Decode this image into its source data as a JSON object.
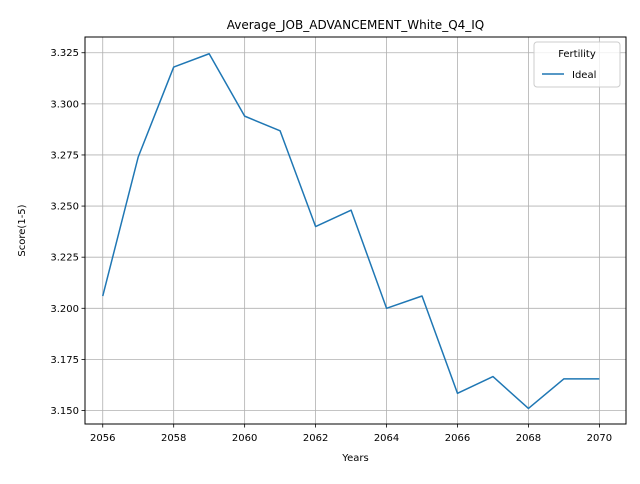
{
  "chart_data": {
    "type": "line",
    "title": "Average_JOB_ADVANCEMENT_White_Q4_IQ",
    "xlabel": "Years",
    "ylabel": "Score(1-5)",
    "xlim": [
      2055.5,
      2070.75
    ],
    "ylim": [
      3.1434,
      3.3327
    ],
    "xticks": [
      "2056",
      "2058",
      "2060",
      "2062",
      "2064",
      "2066",
      "2068",
      "2070"
    ],
    "yticks": [
      "3.150",
      "3.175",
      "3.200",
      "3.225",
      "3.250",
      "3.275",
      "3.300",
      "3.325"
    ],
    "grid": true,
    "legend": {
      "title": "Fertility",
      "placement": "top-right"
    },
    "x": [
      2056,
      2057,
      2058,
      2059,
      2060,
      2061,
      2062,
      2063,
      2064,
      2065,
      2066,
      2067,
      2068,
      2069,
      2070
    ],
    "series": [
      {
        "name": "Ideal",
        "color": "#1f77b4",
        "values": [
          3.206,
          3.274,
          3.318,
          3.3245,
          3.294,
          3.2868,
          3.24,
          3.248,
          3.2,
          3.206,
          3.1584,
          3.1666,
          3.151,
          3.1655,
          3.1655
        ]
      }
    ]
  }
}
